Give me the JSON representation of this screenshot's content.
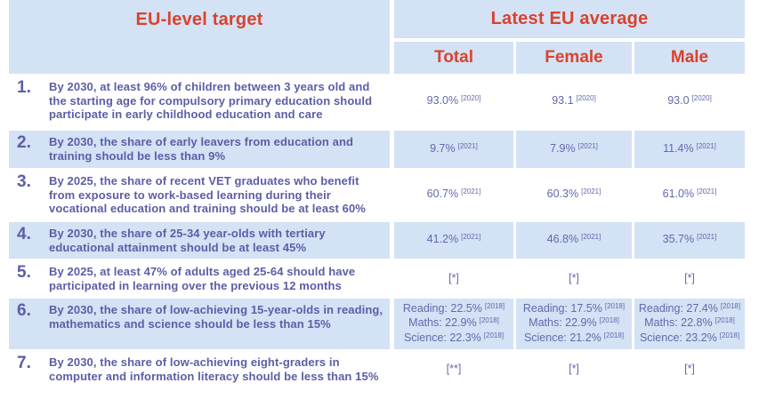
{
  "colors": {
    "accent": "#d9432e",
    "target_text": "#5b5ea6",
    "value_text": "#6468ad",
    "cell_bg": "#d3e2f4",
    "page_bg": "#ffffff"
  },
  "header": {
    "target_label": "EU-level target",
    "latest_label": "Latest EU average",
    "columns": [
      "Total",
      "Female",
      "Male"
    ]
  },
  "rows": [
    {
      "num": "1.",
      "target": "By 2030, at least 96% of children between 3 years old and the starting age for compulsory primary education should participate in early childhood education and care",
      "shaded": false,
      "cells": [
        {
          "lines": [
            {
              "text": "93.0%",
              "note": "[2020]"
            }
          ]
        },
        {
          "lines": [
            {
              "text": "93.1",
              "note": "[2020]"
            }
          ]
        },
        {
          "lines": [
            {
              "text": "93.0",
              "note": "[2020]"
            }
          ]
        }
      ]
    },
    {
      "num": "2.",
      "target": "By 2030, the share of early leavers from education and training should be less than 9%",
      "shaded": true,
      "cells": [
        {
          "lines": [
            {
              "text": "9.7%",
              "note": "[2021]"
            }
          ]
        },
        {
          "lines": [
            {
              "text": "7.9%",
              "note": "[2021]"
            }
          ]
        },
        {
          "lines": [
            {
              "text": "11.4%",
              "note": "[2021]"
            }
          ]
        }
      ]
    },
    {
      "num": "3.",
      "target": "By 2025, the share of recent VET graduates who benefit from exposure to work-based learning during their vocational education and training should be at least 60%",
      "shaded": false,
      "cells": [
        {
          "lines": [
            {
              "text": "60.7%",
              "note": "[2021]"
            }
          ]
        },
        {
          "lines": [
            {
              "text": "60.3%",
              "note": "[2021]"
            }
          ]
        },
        {
          "lines": [
            {
              "text": "61.0%",
              "note": "[2021]"
            }
          ]
        }
      ]
    },
    {
      "num": "4.",
      "target": "By 2030, the share of 25-34 year-olds with tertiary educational attainment should be at least 45%",
      "shaded": true,
      "cells": [
        {
          "lines": [
            {
              "text": "41.2%",
              "note": "[2021]"
            }
          ]
        },
        {
          "lines": [
            {
              "text": "46.8%",
              "note": "[2021]"
            }
          ]
        },
        {
          "lines": [
            {
              "text": "35.7%",
              "note": "[2021]"
            }
          ]
        }
      ]
    },
    {
      "num": "5.",
      "target": "By 2025, at least 47% of adults aged 25-64 should have participated in learning over the previous 12 months",
      "shaded": false,
      "cells": [
        {
          "lines": [
            {
              "text": "[*]",
              "note": ""
            }
          ]
        },
        {
          "lines": [
            {
              "text": "[*]",
              "note": ""
            }
          ]
        },
        {
          "lines": [
            {
              "text": "[*]",
              "note": ""
            }
          ]
        }
      ]
    },
    {
      "num": "6.",
      "target": "By 2030, the share of low-achieving 15-year-olds in reading, mathematics and science should be less than 15%",
      "shaded": true,
      "cells": [
        {
          "lines": [
            {
              "text": "Reading: 22.5%",
              "note": "[2018]"
            },
            {
              "text": "Maths: 22.9%",
              "note": "[2018]"
            },
            {
              "text": "Science: 22.3%",
              "note": "[2018]"
            }
          ]
        },
        {
          "lines": [
            {
              "text": "Reading: 17.5%",
              "note": "[2018]"
            },
            {
              "text": "Maths: 22.9%",
              "note": "[2018]"
            },
            {
              "text": "Science: 21.2%",
              "note": "[2018]"
            }
          ]
        },
        {
          "lines": [
            {
              "text": "Reading: 27.4%",
              "note": "[2018]"
            },
            {
              "text": "Maths: 22.8%",
              "note": "[2018]"
            },
            {
              "text": "Science: 23.2%",
              "note": "[2018]"
            }
          ]
        }
      ]
    },
    {
      "num": "7.",
      "target": "By 2030, the share of low-achieving eight-graders in computer and information literacy should be less than 15%",
      "shaded": false,
      "cells": [
        {
          "lines": [
            {
              "text": "[**]",
              "note": ""
            }
          ]
        },
        {
          "lines": [
            {
              "text": "[*]",
              "note": ""
            }
          ]
        },
        {
          "lines": [
            {
              "text": "[*]",
              "note": ""
            }
          ]
        }
      ]
    }
  ]
}
